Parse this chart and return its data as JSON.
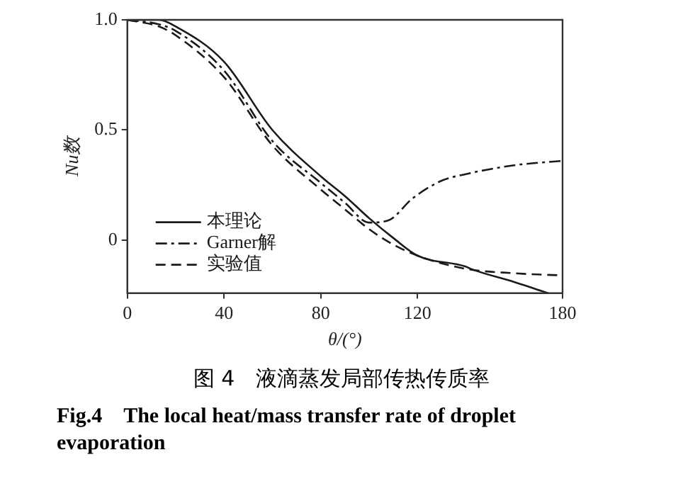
{
  "chart_data": {
    "type": "line",
    "title": "图 4　液滴蒸发局部传热传质率",
    "subtitle": "Fig.4　The local heat/mass transfer rate of droplet evaporation",
    "xlabel": "θ/(°)",
    "ylabel": "Nu数",
    "x": [
      0,
      13,
      20,
      40,
      60,
      80,
      90,
      100,
      108,
      110,
      118,
      120,
      130,
      140,
      142,
      160,
      174,
      180
    ],
    "series": [
      {
        "name": "本理论",
        "color": "#1a1a1a",
        "line_style": "solid",
        "values": [
          1.0,
          1.0,
          0.97,
          0.81,
          0.5,
          0.29,
          0.2,
          0.1,
          null,
          0.01,
          null,
          -0.07,
          null,
          -0.12,
          -0.13,
          -0.19,
          -0.24,
          null
        ]
      },
      {
        "name": "Garner解",
        "color": "#1a1a1a",
        "line_style": "dashdot",
        "values": [
          1.0,
          0.98,
          0.95,
          0.77,
          0.45,
          0.26,
          0.17,
          0.08,
          0.09,
          null,
          0.19,
          null,
          0.27,
          0.3,
          null,
          0.34,
          null,
          0.36
        ]
      },
      {
        "name": "实验值",
        "color": "#1a1a1a",
        "line_style": "dashed",
        "values": [
          1.0,
          0.97,
          0.93,
          0.74,
          0.43,
          0.23,
          0.14,
          0.05,
          null,
          -0.02,
          null,
          -0.07,
          null,
          -0.13,
          null,
          -0.15,
          null,
          -0.16
        ]
      }
    ],
    "xlim": [
      0,
      180
    ],
    "xticks": [
      0,
      40,
      80,
      120,
      180
    ],
    "ylim": [
      -0.24,
      1.0
    ],
    "yticks": [
      0,
      0.5,
      {
        "value": 1.0,
        "label": "1.0"
      }
    ],
    "legend": "bottom left",
    "grid": false,
    "marker": "none"
  }
}
